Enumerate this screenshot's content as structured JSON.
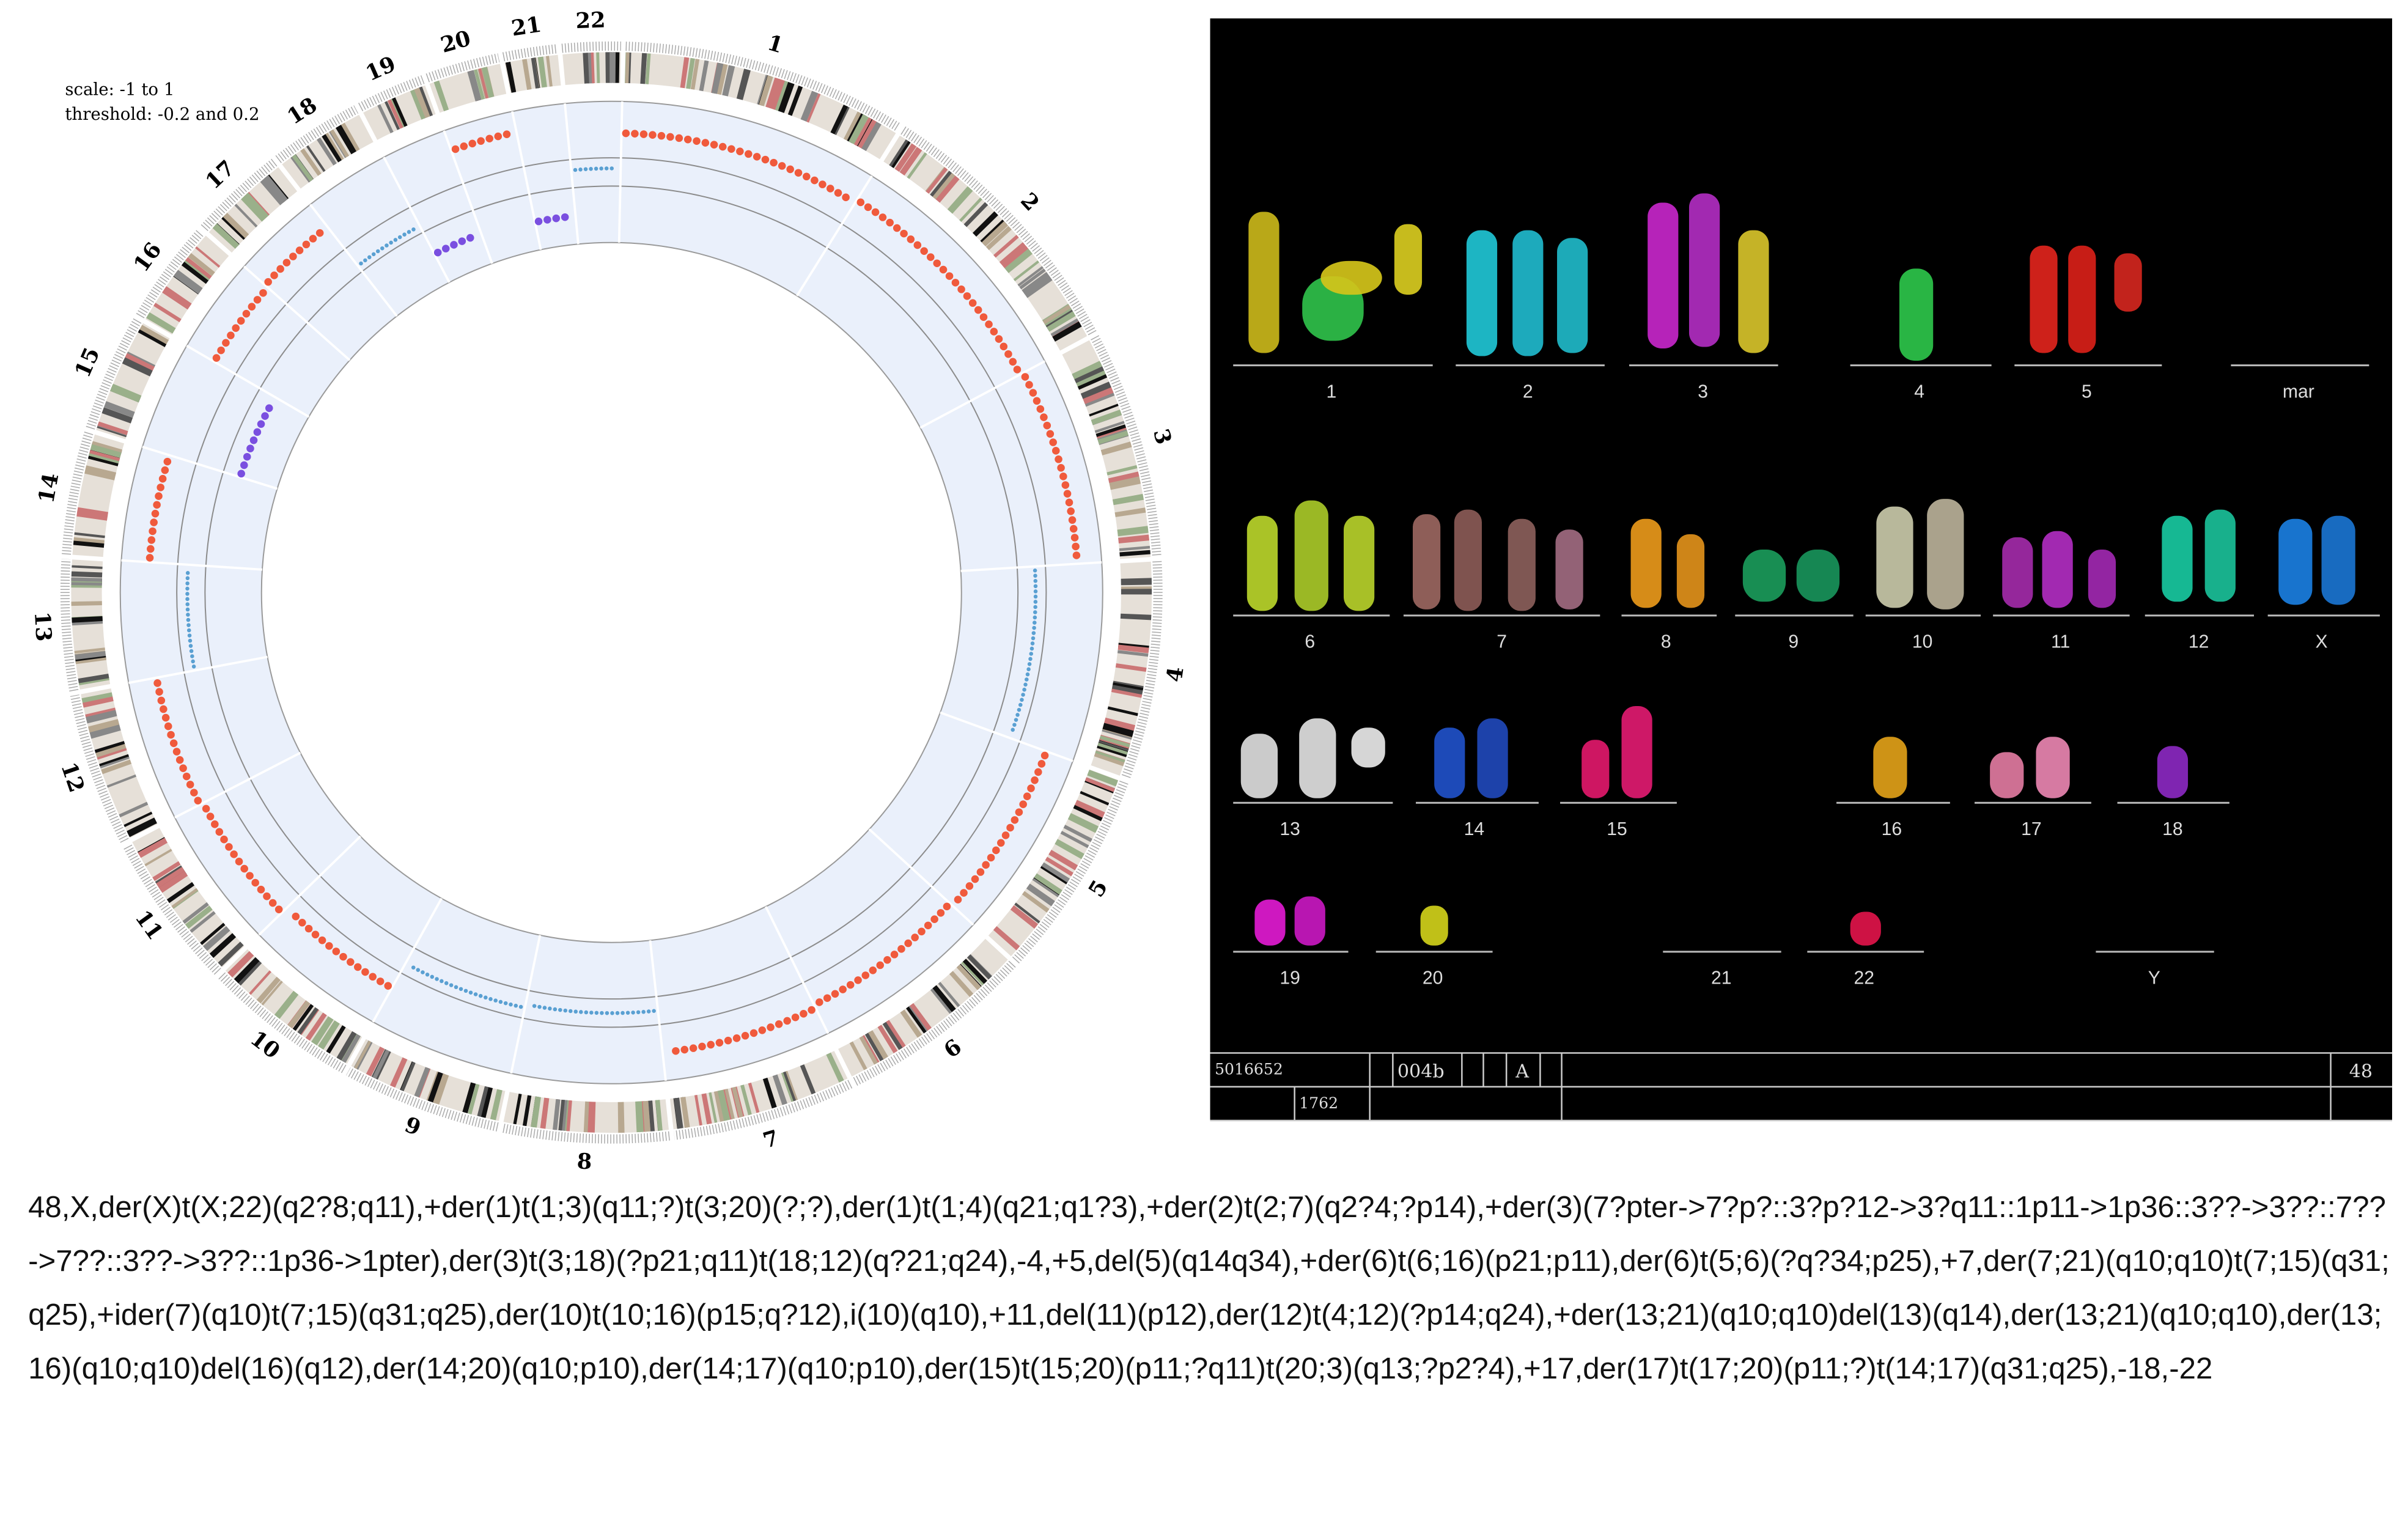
{
  "circos": {
    "scale_label": "scale: -1 to 1",
    "threshold_label": "threshold: -0.2 and 0.2",
    "scale": [
      -1,
      1
    ],
    "thresholds": [
      -0.2,
      0.2
    ],
    "chromosomes": [
      {
        "label": "1",
        "value": 0.55
      },
      {
        "label": "2",
        "value": 0.6
      },
      {
        "label": "3",
        "value": 0.65
      },
      {
        "label": "4",
        "value": 0.05
      },
      {
        "label": "5",
        "value": 0.6
      },
      {
        "label": "6",
        "value": 0.55
      },
      {
        "label": "7",
        "value": 0.6
      },
      {
        "label": "8",
        "value": 0.0
      },
      {
        "label": "9",
        "value": 0.05
      },
      {
        "label": "10",
        "value": 0.45
      },
      {
        "label": "11",
        "value": 0.55
      },
      {
        "label": "12",
        "value": 0.6
      },
      {
        "label": "13",
        "value": 0.05
      },
      {
        "label": "14",
        "value": 0.6
      },
      {
        "label": "15",
        "value": -0.45
      },
      {
        "label": "16",
        "value": 0.55
      },
      {
        "label": "17",
        "value": 0.6
      },
      {
        "label": "18",
        "value": -0.1
      },
      {
        "label": "19",
        "value": -0.55
      },
      {
        "label": "20",
        "value": 0.7
      },
      {
        "label": "21",
        "value": -0.6
      },
      {
        "label": "22",
        "value": 0.05
      }
    ]
  },
  "karyotype_panel": {
    "groups": [
      "1",
      "2",
      "3",
      "4",
      "5",
      "mar",
      "6",
      "7",
      "8",
      "9",
      "10",
      "11",
      "12",
      "X",
      "13",
      "14",
      "15",
      "16",
      "17",
      "18",
      "19",
      "20",
      "21",
      "22",
      "Y"
    ],
    "footer": [
      "5016652",
      "004b",
      "A",
      "48",
      "1762"
    ]
  },
  "karyotype_string": "48,X,der(X)t(X;22)(q2?8;q11),+der(1)t(1;3)(q11;?)t(3;20)(?;?),der(1)t(1;4)(q21;q1?3),+der(2)t(2;7)(q2?4;?p14),+der(3)(7?pter->7?p?::3?p?12->3?q11::1p11->1p36::3??->3??::7??->7??::3??->3??::1p36->1pter),der(3)t(3;18)(?p21;q11)t(18;12)(q?21;q24),-4,+5,del(5)(q14q34),+der(6)t(6;16)(p21;p11),der(6)t(5;6)(?q?34;p25),+7,der(7;21)(q10;q10)t(7;15)(q31;q25),+ider(7)(q10)t(7;15)(q31;q25),der(10)t(10;16)(p15;q?12),i(10)(q10),+11,del(11)(p12),der(12)t(4;12)(?p14;q24),+der(13;21)(q10;q10)del(13)(q14),der(13;21)(q10;q10),der(13;16)(q10;q10)del(16)(q12),der(14;20)(q10;p10),der(14;17)(q10;p10),der(15)t(15;20)(p11;?q11)t(20;3)(q13;?p2?4),+17,der(17)t(17;20)(p11;?)t(14;17)(q31;q25),-18,-22"
}
